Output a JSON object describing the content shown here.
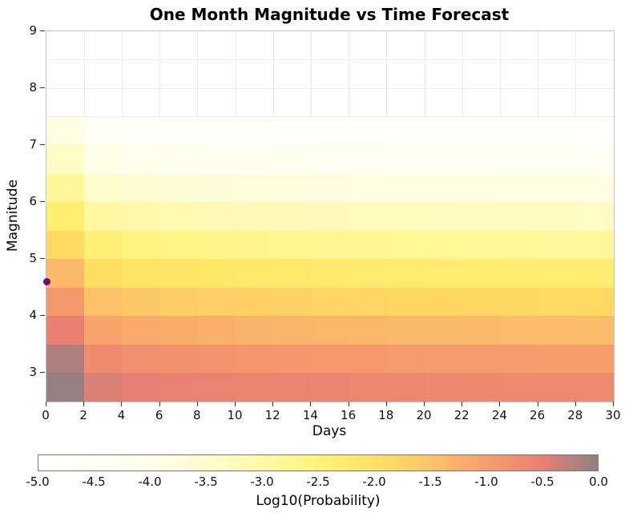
{
  "chart_data": {
    "type": "heatmap",
    "title": "One Month Magnitude vs Time Forecast",
    "xlabel": "Days",
    "ylabel": "Magnitude",
    "xlim": [
      0,
      30
    ],
    "ylim": [
      2.5,
      9
    ],
    "x_ticks": [
      0,
      2,
      4,
      6,
      8,
      10,
      12,
      14,
      16,
      18,
      20,
      22,
      24,
      26,
      28,
      30
    ],
    "y_ticks": [
      3,
      4,
      5,
      6,
      7,
      8,
      9
    ],
    "grid": true,
    "day_bin_edges": [
      0,
      2,
      4,
      6,
      8,
      10,
      12,
      14,
      16,
      18,
      20,
      22,
      24,
      26,
      28,
      30
    ],
    "magnitude_bin_edges": [
      2.5,
      3.0,
      3.5,
      4.0,
      4.5,
      5.0,
      5.5,
      6.0,
      6.5,
      7.0,
      7.5
    ],
    "values_note": "log10 probability per (magnitude bin, day bin); rows bottom-to-top",
    "values_log10_probability": [
      [
        -0.05,
        -0.42,
        -0.48,
        -0.52,
        -0.55,
        -0.57,
        -0.59,
        -0.6,
        -0.62,
        -0.63,
        -0.64,
        -0.65,
        -0.66,
        -0.67,
        -0.68
      ],
      [
        -0.18,
        -0.68,
        -0.76,
        -0.81,
        -0.84,
        -0.87,
        -0.89,
        -0.91,
        -0.92,
        -0.94,
        -0.95,
        -0.96,
        -0.97,
        -0.98,
        -0.99
      ],
      [
        -0.5,
        -1.05,
        -1.14,
        -1.2,
        -1.24,
        -1.27,
        -1.3,
        -1.32,
        -1.34,
        -1.35,
        -1.37,
        -1.38,
        -1.39,
        -1.4,
        -1.41
      ],
      [
        -0.9,
        -1.48,
        -1.58,
        -1.64,
        -1.68,
        -1.71,
        -1.74,
        -1.76,
        -1.78,
        -1.8,
        -1.81,
        -1.83,
        -1.84,
        -1.85,
        -1.86
      ],
      [
        -1.35,
        -1.95,
        -2.05,
        -2.11,
        -2.16,
        -2.19,
        -2.22,
        -2.24,
        -2.26,
        -2.28,
        -2.3,
        -2.31,
        -2.33,
        -2.34,
        -2.35
      ],
      [
        -1.85,
        -2.45,
        -2.55,
        -2.61,
        -2.66,
        -2.69,
        -2.72,
        -2.74,
        -2.76,
        -2.78,
        -2.8,
        -2.81,
        -2.83,
        -2.84,
        -2.85
      ],
      [
        -2.35,
        -2.95,
        -3.05,
        -3.11,
        -3.16,
        -3.19,
        -3.22,
        -3.24,
        -3.26,
        -3.28,
        -3.3,
        -3.31,
        -3.33,
        -3.34,
        -3.35
      ],
      [
        -2.85,
        -3.45,
        -3.55,
        -3.61,
        -3.66,
        -3.69,
        -3.72,
        -3.74,
        -3.76,
        -3.78,
        -3.8,
        -3.81,
        -3.83,
        -3.84,
        -3.85
      ],
      [
        -3.35,
        -3.95,
        -4.05,
        -4.11,
        -4.16,
        -4.19,
        -4.22,
        -4.24,
        -4.26,
        -4.28,
        -4.3,
        -4.31,
        -4.33,
        -4.34,
        -4.35
      ],
      [
        -3.85,
        -4.45,
        -4.55,
        -4.61,
        -4.66,
        -4.69,
        -4.72,
        -4.74,
        -4.76,
        -4.78,
        -4.8,
        -4.81,
        -4.83,
        -4.84,
        -4.85
      ]
    ],
    "colormap_stops": [
      {
        "v": -5.0,
        "c": [
          255,
          255,
          255
        ]
      },
      {
        "v": -4.5,
        "c": [
          255,
          255,
          247
        ]
      },
      {
        "v": -4.0,
        "c": [
          255,
          255,
          235
        ]
      },
      {
        "v": -3.5,
        "c": [
          255,
          252,
          208
        ]
      },
      {
        "v": -3.0,
        "c": [
          255,
          249,
          168
        ]
      },
      {
        "v": -2.5,
        "c": [
          255,
          243,
          122
        ]
      },
      {
        "v": -2.0,
        "c": [
          255,
          226,
          96
        ]
      },
      {
        "v": -1.5,
        "c": [
          253,
          196,
          105
        ]
      },
      {
        "v": -1.0,
        "c": [
          247,
          158,
          108
        ]
      },
      {
        "v": -0.5,
        "c": [
          234,
          128,
          113
        ]
      },
      {
        "v": 0.0,
        "c": [
          141,
          128,
          131
        ]
      }
    ],
    "colorbar": {
      "label": "Log10(Probability)",
      "tick_labels": [
        "-5.0",
        "-4.5",
        "-4.0",
        "-3.5",
        "-3.0",
        "-2.5",
        "-2.0",
        "-1.5",
        "-1.0",
        "-0.5",
        "0.0"
      ],
      "range": [
        -5,
        0
      ],
      "orientation": "horizontal"
    },
    "mainshock_marker": {
      "day": 0,
      "magnitude": 4.6,
      "color": "#800080"
    }
  },
  "colors": {
    "background": "#ffffff",
    "grid": "#ececec",
    "spine": "#c4c4c4",
    "tick": "#333333",
    "text": "#000000"
  }
}
